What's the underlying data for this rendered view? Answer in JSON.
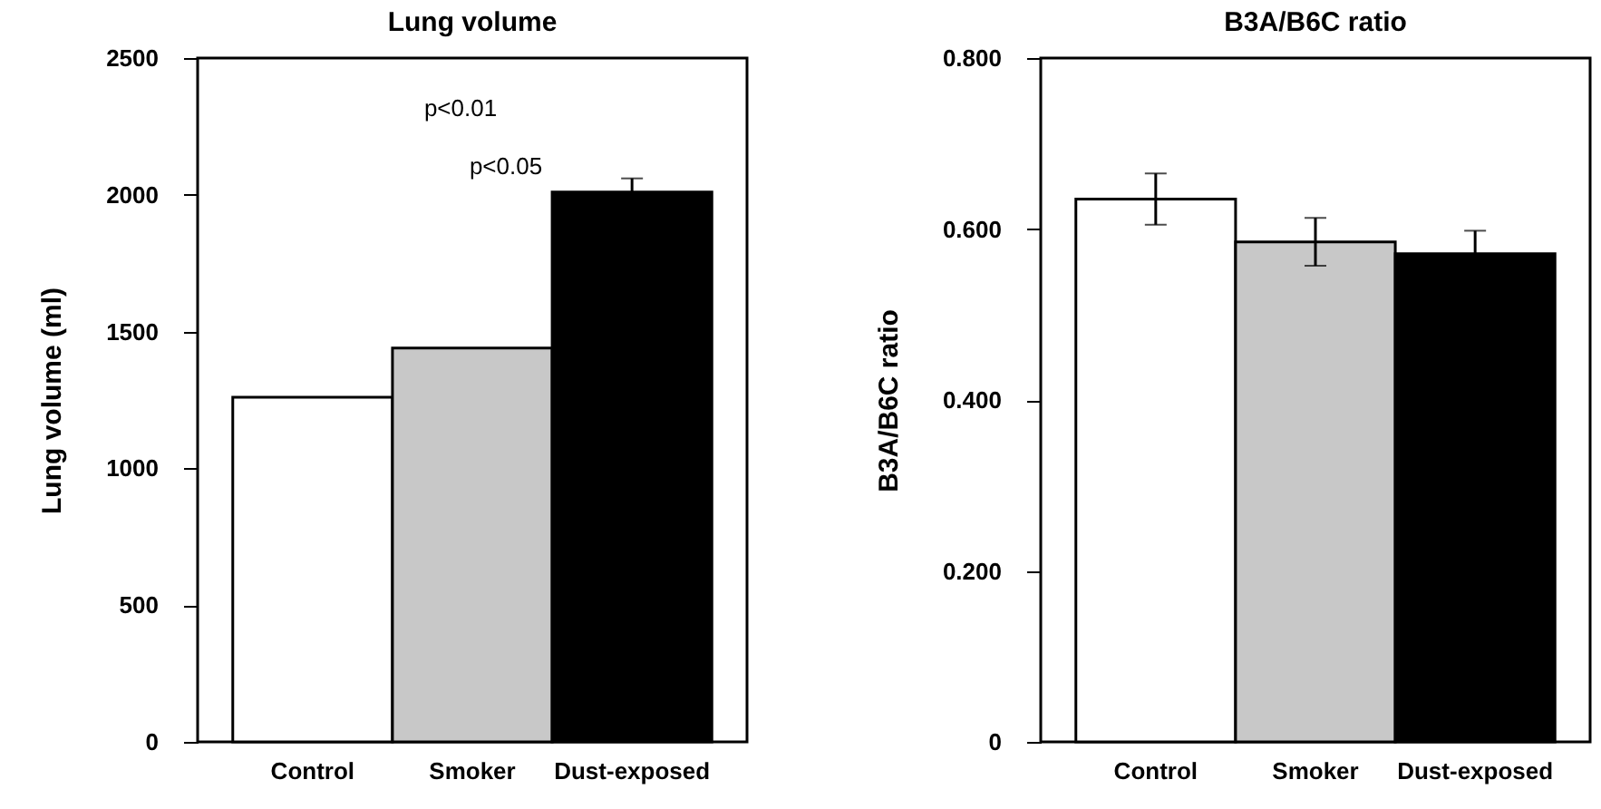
{
  "chart_data": [
    {
      "type": "bar",
      "title": "Lung volume",
      "ylabel": "Lung volume (ml)",
      "categories": [
        "Control",
        "Smoker",
        "Dust-exposed"
      ],
      "values": [
        1260,
        1440,
        2010
      ],
      "colors": [
        "#ffffff",
        "#c8c8c8",
        "#000000"
      ],
      "errors": [
        null,
        null,
        50
      ],
      "ylim": [
        0,
        2500
      ],
      "yticks": [
        0,
        500,
        1000,
        1500,
        2000,
        2500
      ],
      "grid": false,
      "annotations": [
        "p<0.01",
        "p<0.05"
      ]
    },
    {
      "type": "bar",
      "title": "B3A/B6C ratio",
      "ylabel": "B3A/B6C ratio",
      "categories": [
        "Control",
        "Smoker",
        "Dust-exposed"
      ],
      "values": [
        0.635,
        0.585,
        0.571
      ],
      "colors": [
        "#ffffff",
        "#c8c8c8",
        "#000000"
      ],
      "errors": [
        0.03,
        0.028,
        0.027
      ],
      "ylim": [
        0,
        0.8
      ],
      "yticks": [
        0,
        {
          "value": 0.2,
          "label": "0.200"
        },
        {
          "value": 0.4,
          "label": "0.400"
        },
        {
          "value": 0.6,
          "label": "0.600"
        },
        {
          "value": 0.8,
          "label": "0.800"
        }
      ],
      "grid": false
    }
  ]
}
